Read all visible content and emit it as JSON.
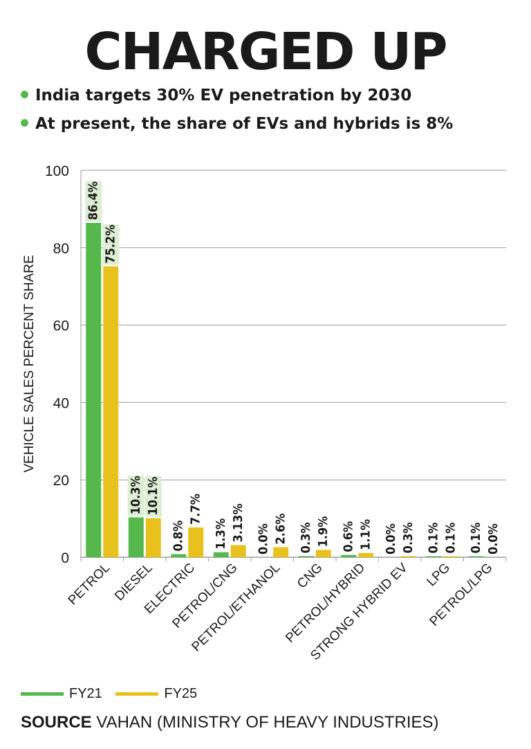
{
  "header": {
    "title": "CHARGED UP",
    "bullets": [
      "India targets 30% EV penetration by 2030",
      "At present, the share of EVs and hybrids is 8%"
    ]
  },
  "colors": {
    "fy21": "#55b84c",
    "fy25": "#e8c11c",
    "label_bg": "#dcefd4",
    "grid": "#9a9a9a"
  },
  "chart_data": {
    "type": "bar",
    "title": "",
    "xlabel": "",
    "ylabel": "VEHICLE SALES PERCENT SHARE",
    "ylim": [
      0,
      100
    ],
    "yticks": [
      0,
      20,
      40,
      60,
      80,
      100
    ],
    "grid": true,
    "legend": "bottom-left",
    "categories": [
      "PETROL",
      "DIESEL",
      "ELECTRIC",
      "PETROL/CNG",
      "PETROL/ETHANOL",
      "CNG",
      "PETROL/HYBRID",
      "STRONG HYBRID EV",
      "LPG",
      "PETROL/LPG"
    ],
    "series": [
      {
        "name": "FY21",
        "values": [
          86.4,
          10.3,
          0.8,
          1.3,
          0.0,
          0.3,
          0.6,
          0.0,
          0.1,
          0.1
        ],
        "labels": [
          "86.4%",
          "10.3%",
          "0.8%",
          "1.3%",
          "0.0%",
          "0.3%",
          "0.6%",
          "0.0%",
          "0.1%",
          "0.1%"
        ]
      },
      {
        "name": "FY25",
        "values": [
          75.2,
          10.1,
          7.7,
          3.13,
          2.6,
          1.9,
          1.1,
          0.3,
          0.1,
          0.0
        ],
        "labels": [
          "75.2%",
          "10.1%",
          "7.7%",
          "3.13%",
          "2.6%",
          "1.9%",
          "1.1%",
          "0.3%",
          "0.1%",
          "0.0%"
        ]
      }
    ]
  },
  "legend": {
    "fy21": "FY21",
    "fy25": "FY25"
  },
  "source": {
    "label": "SOURCE",
    "text": "VAHAN (MINISTRY OF HEAVY INDUSTRIES)"
  }
}
